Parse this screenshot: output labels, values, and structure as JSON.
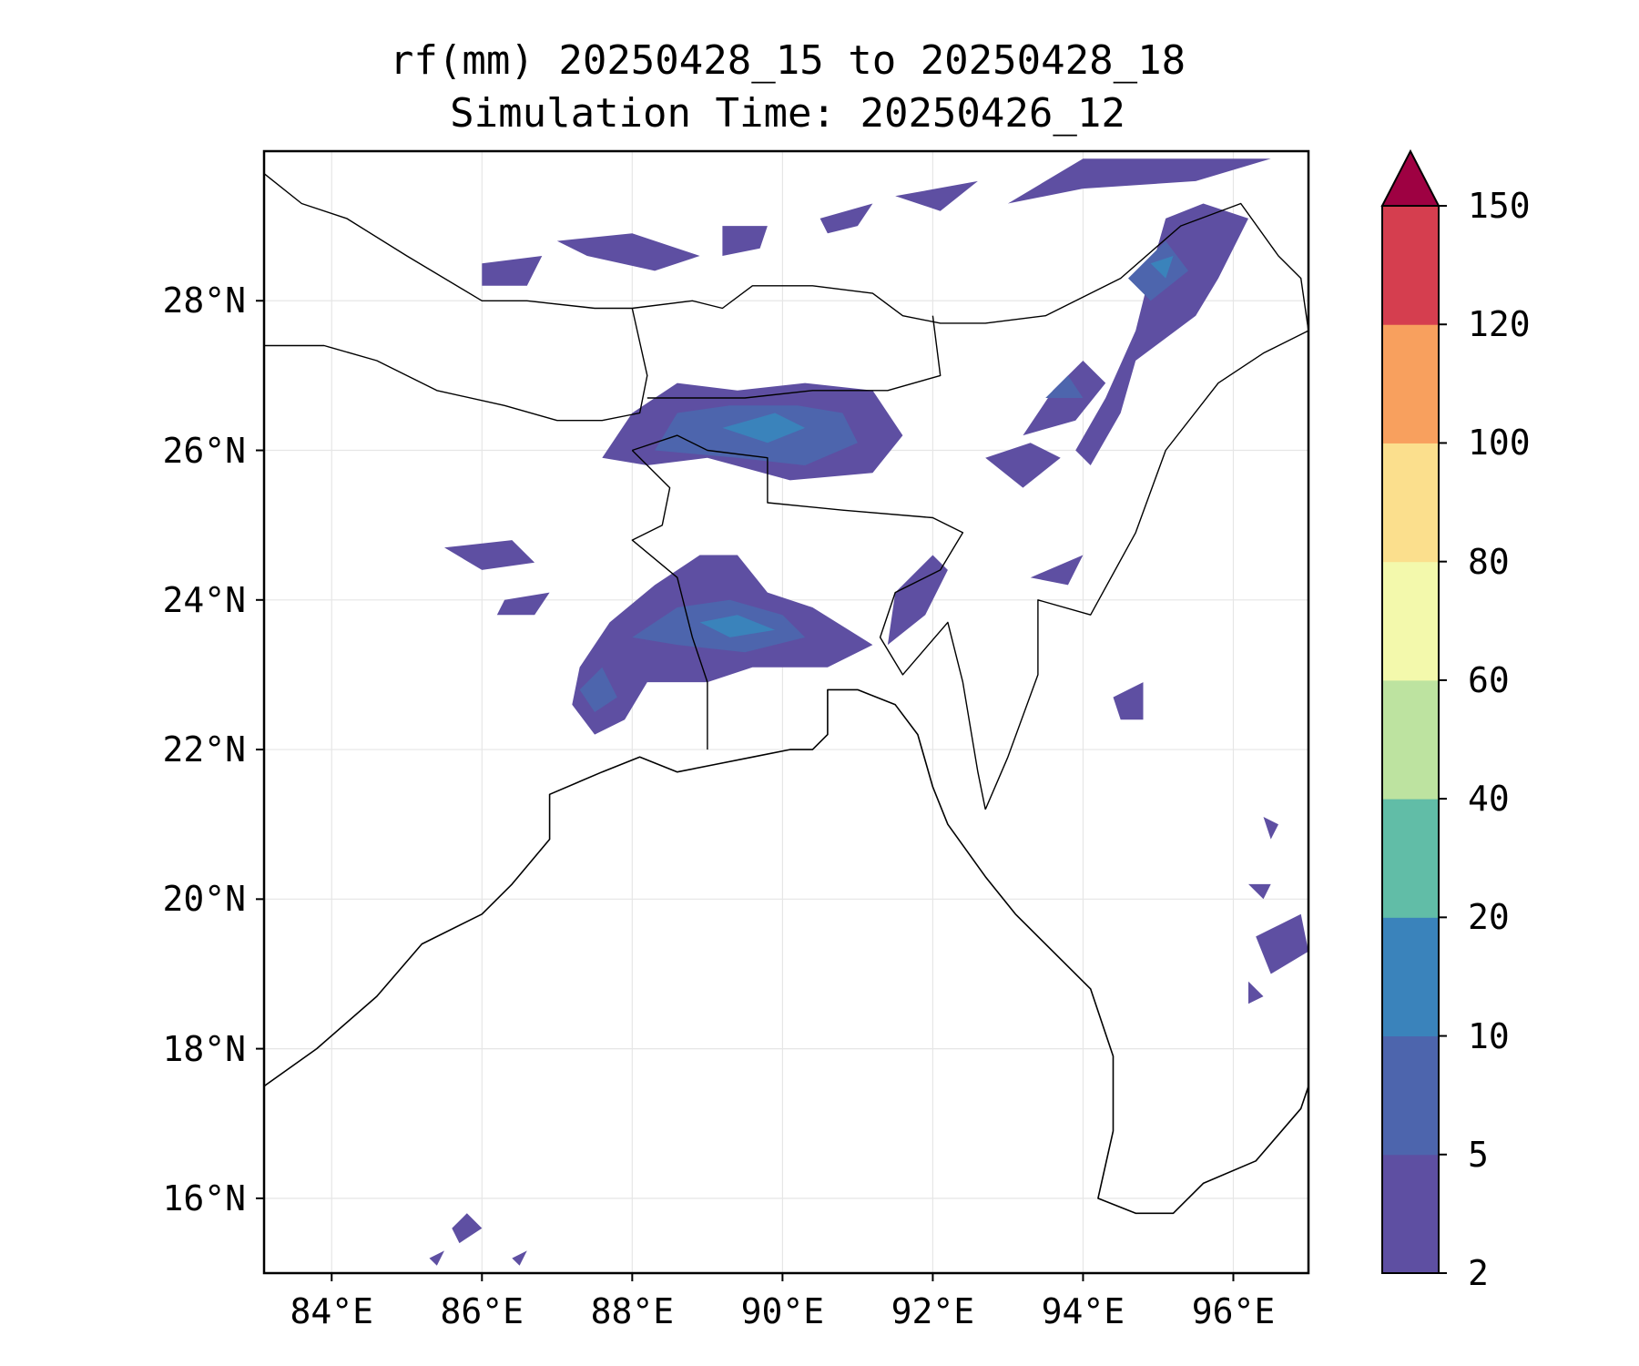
{
  "title": {
    "line1": "rf(mm) 20250428_15 to 20250428_18",
    "line2": "Simulation Time: 20250426_12"
  },
  "map": {
    "lon_range": [
      83.1,
      97.0
    ],
    "lat_range": [
      15.0,
      30.0
    ],
    "lat_ticks": [
      {
        "value": 16,
        "label": "16°N"
      },
      {
        "value": 18,
        "label": "18°N"
      },
      {
        "value": 20,
        "label": "20°N"
      },
      {
        "value": 22,
        "label": "22°N"
      },
      {
        "value": 24,
        "label": "24°N"
      },
      {
        "value": 26,
        "label": "26°N"
      },
      {
        "value": 28,
        "label": "28°N"
      }
    ],
    "lon_ticks": [
      {
        "value": 84,
        "label": "84°E"
      },
      {
        "value": 86,
        "label": "86°E"
      },
      {
        "value": 88,
        "label": "88°E"
      },
      {
        "value": 90,
        "label": "90°E"
      },
      {
        "value": 92,
        "label": "92°E"
      },
      {
        "value": 94,
        "label": "94°E"
      },
      {
        "value": 96,
        "label": "96°E"
      }
    ],
    "gridlines": true,
    "rain_patches": [
      {
        "level": 0,
        "points": [
          [
            87.6,
            25.9
          ],
          [
            88.0,
            26.5
          ],
          [
            88.6,
            26.9
          ],
          [
            89.4,
            26.8
          ],
          [
            90.3,
            26.9
          ],
          [
            91.2,
            26.8
          ],
          [
            91.6,
            26.2
          ],
          [
            91.2,
            25.7
          ],
          [
            90.1,
            25.6
          ],
          [
            89.0,
            25.9
          ],
          [
            88.2,
            25.8
          ]
        ]
      },
      {
        "level": 1,
        "points": [
          [
            88.3,
            26.0
          ],
          [
            88.6,
            26.5
          ],
          [
            89.3,
            26.6
          ],
          [
            90.2,
            26.6
          ],
          [
            90.8,
            26.5
          ],
          [
            91.0,
            26.1
          ],
          [
            90.3,
            25.8
          ],
          [
            89.4,
            25.9
          ]
        ]
      },
      {
        "level": 2,
        "points": [
          [
            89.2,
            26.3
          ],
          [
            89.9,
            26.5
          ],
          [
            90.3,
            26.3
          ],
          [
            89.8,
            26.1
          ]
        ]
      },
      {
        "level": 0,
        "points": [
          [
            87.3,
            23.1
          ],
          [
            87.7,
            23.7
          ],
          [
            88.3,
            24.2
          ],
          [
            88.9,
            24.6
          ],
          [
            89.4,
            24.6
          ],
          [
            89.8,
            24.1
          ],
          [
            90.4,
            23.9
          ],
          [
            91.2,
            23.4
          ],
          [
            90.6,
            23.1
          ],
          [
            89.6,
            23.1
          ],
          [
            89.0,
            22.9
          ],
          [
            88.2,
            22.9
          ],
          [
            87.9,
            22.4
          ],
          [
            87.5,
            22.2
          ],
          [
            87.2,
            22.6
          ]
        ]
      },
      {
        "level": 1,
        "points": [
          [
            88.0,
            23.5
          ],
          [
            88.6,
            23.9
          ],
          [
            89.3,
            24.0
          ],
          [
            90.0,
            23.8
          ],
          [
            90.3,
            23.5
          ],
          [
            89.5,
            23.3
          ],
          [
            88.6,
            23.4
          ]
        ]
      },
      {
        "level": 2,
        "points": [
          [
            88.9,
            23.7
          ],
          [
            89.4,
            23.8
          ],
          [
            89.9,
            23.6
          ],
          [
            89.3,
            23.5
          ]
        ]
      },
      {
        "level": 1,
        "points": [
          [
            87.3,
            22.8
          ],
          [
            87.6,
            23.1
          ],
          [
            87.8,
            22.7
          ],
          [
            87.5,
            22.5
          ]
        ]
      },
      {
        "level": 0,
        "points": [
          [
            93.9,
            26.0
          ],
          [
            94.3,
            26.7
          ],
          [
            94.7,
            27.6
          ],
          [
            94.9,
            28.4
          ],
          [
            95.1,
            29.1
          ],
          [
            95.6,
            29.3
          ],
          [
            96.2,
            29.1
          ],
          [
            95.8,
            28.3
          ],
          [
            95.5,
            27.8
          ],
          [
            94.7,
            27.2
          ],
          [
            94.5,
            26.5
          ],
          [
            94.1,
            25.8
          ]
        ]
      },
      {
        "level": 1,
        "points": [
          [
            94.6,
            28.3
          ],
          [
            95.1,
            28.8
          ],
          [
            95.4,
            28.4
          ],
          [
            94.9,
            28.0
          ]
        ]
      },
      {
        "level": 2,
        "points": [
          [
            94.9,
            28.5
          ],
          [
            95.2,
            28.6
          ],
          [
            95.1,
            28.3
          ]
        ]
      },
      {
        "level": 0,
        "points": [
          [
            93.2,
            26.2
          ],
          [
            93.6,
            26.8
          ],
          [
            94.0,
            27.2
          ],
          [
            94.3,
            26.9
          ],
          [
            93.9,
            26.4
          ]
        ]
      },
      {
        "level": 1,
        "points": [
          [
            93.5,
            26.7
          ],
          [
            93.8,
            27.0
          ],
          [
            94.0,
            26.7
          ]
        ]
      },
      {
        "level": 0,
        "points": [
          [
            92.7,
            25.9
          ],
          [
            93.3,
            26.1
          ],
          [
            93.7,
            25.9
          ],
          [
            93.2,
            25.5
          ]
        ]
      },
      {
        "level": 0,
        "points": [
          [
            87.0,
            28.8
          ],
          [
            88.0,
            28.9
          ],
          [
            88.9,
            28.6
          ],
          [
            88.3,
            28.4
          ],
          [
            87.4,
            28.6
          ]
        ]
      },
      {
        "level": 0,
        "points": [
          [
            86.0,
            28.5
          ],
          [
            86.8,
            28.6
          ],
          [
            86.6,
            28.2
          ],
          [
            86.0,
            28.2
          ]
        ]
      },
      {
        "level": 0,
        "points": [
          [
            89.2,
            29.0
          ],
          [
            89.8,
            29.0
          ],
          [
            89.7,
            28.7
          ],
          [
            89.2,
            28.6
          ]
        ]
      },
      {
        "level": 0,
        "points": [
          [
            91.5,
            29.4
          ],
          [
            92.6,
            29.6
          ],
          [
            92.1,
            29.2
          ]
        ]
      },
      {
        "level": 0,
        "points": [
          [
            93.0,
            29.3
          ],
          [
            94.0,
            29.9
          ],
          [
            95.0,
            29.9
          ],
          [
            96.5,
            29.9
          ],
          [
            95.5,
            29.6
          ],
          [
            94.0,
            29.5
          ]
        ]
      },
      {
        "level": 0,
        "points": [
          [
            90.5,
            29.1
          ],
          [
            91.2,
            29.3
          ],
          [
            91.0,
            29.0
          ],
          [
            90.6,
            28.9
          ]
        ]
      },
      {
        "level": 0,
        "points": [
          [
            85.5,
            24.7
          ],
          [
            86.4,
            24.8
          ],
          [
            86.7,
            24.5
          ],
          [
            86.0,
            24.4
          ]
        ]
      },
      {
        "level": 0,
        "points": [
          [
            86.3,
            24.0
          ],
          [
            86.9,
            24.1
          ],
          [
            86.7,
            23.8
          ],
          [
            86.2,
            23.8
          ]
        ]
      },
      {
        "level": 0,
        "points": [
          [
            91.5,
            24.1
          ],
          [
            92.0,
            24.6
          ],
          [
            92.2,
            24.4
          ],
          [
            91.9,
            23.8
          ],
          [
            91.4,
            23.4
          ]
        ]
      },
      {
        "level": 0,
        "points": [
          [
            93.3,
            24.3
          ],
          [
            94.0,
            24.6
          ],
          [
            93.8,
            24.2
          ]
        ]
      },
      {
        "level": 0,
        "points": [
          [
            94.4,
            22.7
          ],
          [
            94.8,
            22.9
          ],
          [
            94.8,
            22.4
          ],
          [
            94.5,
            22.4
          ]
        ]
      },
      {
        "level": 0,
        "points": [
          [
            96.3,
            19.5
          ],
          [
            96.9,
            19.8
          ],
          [
            97.0,
            19.3
          ],
          [
            96.5,
            19.0
          ]
        ]
      },
      {
        "level": 0,
        "points": [
          [
            96.2,
            18.9
          ],
          [
            96.4,
            18.7
          ],
          [
            96.2,
            18.6
          ]
        ]
      },
      {
        "level": 0,
        "points": [
          [
            96.2,
            20.2
          ],
          [
            96.5,
            20.2
          ],
          [
            96.4,
            20.0
          ]
        ]
      },
      {
        "level": 0,
        "points": [
          [
            96.4,
            21.1
          ],
          [
            96.6,
            21.0
          ],
          [
            96.5,
            20.8
          ]
        ]
      },
      {
        "level": 0,
        "points": [
          [
            85.6,
            15.6
          ],
          [
            85.8,
            15.8
          ],
          [
            86.0,
            15.6
          ],
          [
            85.7,
            15.4
          ]
        ]
      },
      {
        "level": 0,
        "points": [
          [
            86.4,
            15.2
          ],
          [
            86.6,
            15.3
          ],
          [
            86.5,
            15.1
          ]
        ]
      },
      {
        "level": 0,
        "points": [
          [
            85.3,
            15.2
          ],
          [
            85.5,
            15.3
          ],
          [
            85.4,
            15.1
          ]
        ]
      }
    ],
    "coastlines": [
      [
        [
          83.1,
          17.5
        ],
        [
          83.8,
          18.0
        ],
        [
          84.6,
          18.7
        ],
        [
          85.2,
          19.4
        ],
        [
          86.0,
          19.8
        ],
        [
          86.4,
          20.2
        ],
        [
          86.9,
          20.8
        ],
        [
          86.9,
          21.4
        ],
        [
          87.6,
          21.7
        ],
        [
          88.1,
          21.9
        ],
        [
          88.6,
          21.7
        ],
        [
          89.1,
          21.8
        ],
        [
          89.6,
          21.9
        ],
        [
          90.1,
          22.0
        ],
        [
          90.4,
          22.0
        ],
        [
          90.6,
          22.2
        ],
        [
          90.6,
          22.8
        ],
        [
          91.0,
          22.8
        ],
        [
          91.5,
          22.6
        ],
        [
          91.8,
          22.2
        ],
        [
          92.0,
          21.5
        ],
        [
          92.2,
          21.0
        ],
        [
          92.7,
          20.3
        ],
        [
          93.1,
          19.8
        ],
        [
          93.6,
          19.3
        ],
        [
          94.1,
          18.8
        ],
        [
          94.4,
          17.9
        ],
        [
          94.4,
          16.9
        ],
        [
          94.2,
          16.0
        ],
        [
          94.7,
          15.8
        ],
        [
          95.2,
          15.8
        ],
        [
          95.6,
          16.2
        ],
        [
          96.3,
          16.5
        ],
        [
          96.9,
          17.2
        ],
        [
          97.0,
          17.5
        ]
      ]
    ],
    "borders": [
      [
        [
          83.1,
          29.7
        ],
        [
          83.6,
          29.3
        ],
        [
          84.2,
          29.1
        ],
        [
          85.0,
          28.6
        ],
        [
          86.0,
          28.0
        ],
        [
          86.6,
          28.0
        ],
        [
          87.5,
          27.9
        ],
        [
          88.0,
          27.9
        ],
        [
          88.8,
          28.0
        ],
        [
          89.2,
          27.9
        ],
        [
          89.6,
          28.2
        ],
        [
          90.4,
          28.2
        ],
        [
          91.2,
          28.1
        ],
        [
          91.6,
          27.8
        ],
        [
          92.1,
          27.7
        ],
        [
          92.7,
          27.7
        ],
        [
          93.5,
          27.8
        ],
        [
          94.5,
          28.3
        ],
        [
          95.3,
          29.0
        ],
        [
          96.1,
          29.3
        ],
        [
          96.6,
          28.6
        ],
        [
          96.9,
          28.3
        ],
        [
          97.0,
          27.6
        ]
      ],
      [
        [
          83.1,
          27.4
        ],
        [
          83.9,
          27.4
        ],
        [
          84.6,
          27.2
        ],
        [
          85.4,
          26.8
        ],
        [
          86.3,
          26.6
        ],
        [
          87.0,
          26.4
        ],
        [
          87.6,
          26.4
        ],
        [
          88.1,
          26.5
        ],
        [
          88.2,
          27.0
        ],
        [
          88.0,
          27.9
        ]
      ],
      [
        [
          88.2,
          26.7
        ],
        [
          88.6,
          26.7
        ],
        [
          89.5,
          26.7
        ],
        [
          90.4,
          26.8
        ],
        [
          91.4,
          26.8
        ],
        [
          92.1,
          27.0
        ],
        [
          92.0,
          27.8
        ]
      ],
      [
        [
          88.0,
          26.0
        ],
        [
          88.6,
          26.2
        ],
        [
          89.0,
          26.0
        ],
        [
          89.8,
          25.9
        ],
        [
          89.8,
          25.3
        ],
        [
          90.8,
          25.2
        ],
        [
          92.0,
          25.1
        ],
        [
          92.4,
          24.9
        ],
        [
          92.1,
          24.4
        ],
        [
          91.5,
          24.1
        ],
        [
          91.3,
          23.5
        ],
        [
          91.6,
          23.0
        ],
        [
          92.2,
          23.7
        ],
        [
          92.4,
          22.9
        ],
        [
          92.6,
          21.7
        ],
        [
          92.7,
          21.2
        ]
      ],
      [
        [
          88.0,
          26.0
        ],
        [
          88.5,
          25.5
        ],
        [
          88.4,
          25.0
        ],
        [
          88.0,
          24.8
        ],
        [
          88.6,
          24.3
        ],
        [
          88.8,
          23.5
        ],
        [
          89.0,
          22.9
        ],
        [
          89.0,
          22.0
        ]
      ],
      [
        [
          92.7,
          21.2
        ],
        [
          93.0,
          21.9
        ],
        [
          93.4,
          23.0
        ],
        [
          93.4,
          24.0
        ],
        [
          94.1,
          23.8
        ],
        [
          94.7,
          24.9
        ],
        [
          95.1,
          26.0
        ],
        [
          95.8,
          26.9
        ],
        [
          96.4,
          27.3
        ],
        [
          97.0,
          27.6
        ]
      ]
    ]
  },
  "colorbar": {
    "levels": [
      "2",
      "5",
      "10",
      "20",
      "40",
      "60",
      "80",
      "100",
      "120",
      "150"
    ],
    "colors": [
      "#5e4fa2",
      "#4d65ad",
      "#3a83bb",
      "#61bda7",
      "#bde3a0",
      "#f3f9ac",
      "#fbdf8d",
      "#f8a05e",
      "#d53e4f",
      "#9e0142"
    ],
    "extend": "max"
  }
}
